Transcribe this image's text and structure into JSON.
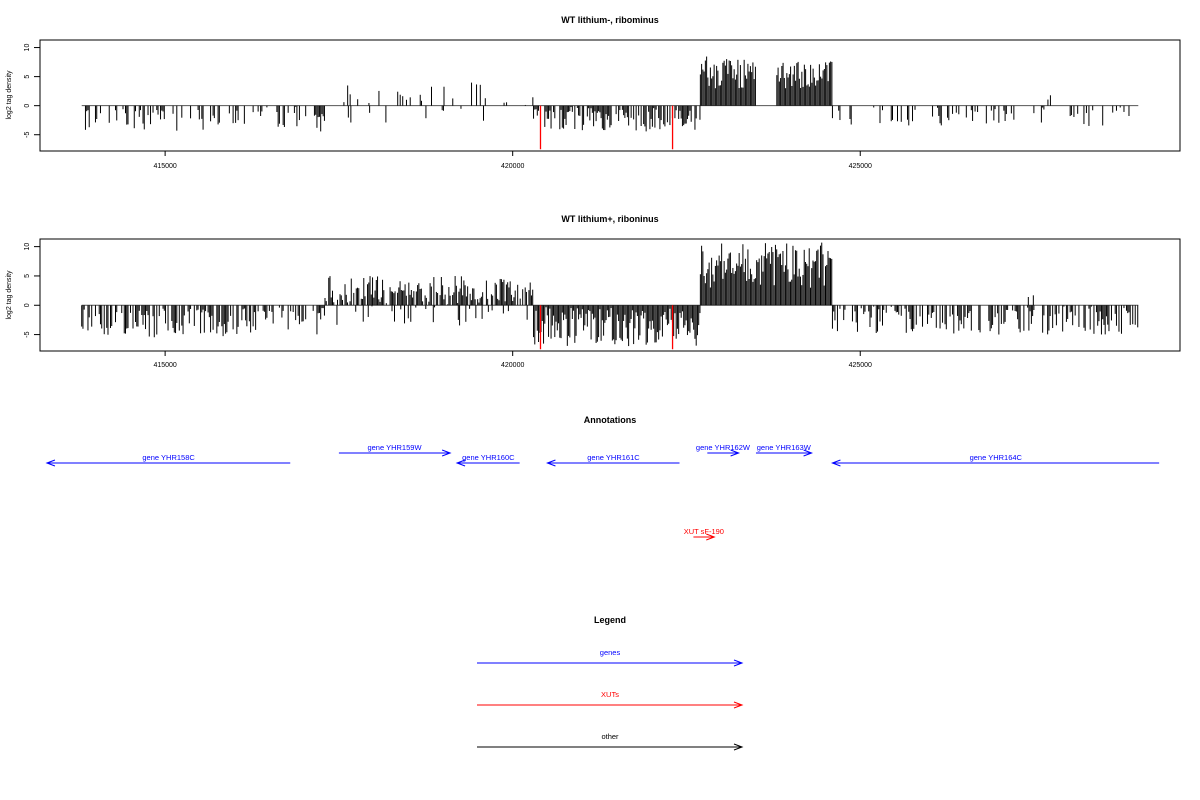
{
  "chart_data": [
    {
      "type": "bar",
      "title": "WT lithium-, ribominus",
      "ylabel": "log2 tag density",
      "x_ticks": [
        "415000",
        "420000",
        "425000"
      ],
      "x_tick_values": [
        415000,
        420000,
        425000
      ],
      "y_ticks": [
        "-5",
        "0",
        "5",
        "10"
      ],
      "y_tick_values": [
        -5,
        0,
        5,
        10
      ],
      "xlim": [
        413200,
        429600
      ],
      "ylim": [
        -7.8,
        11.3
      ],
      "marker_color": "#ff0000",
      "bar_color": "#000000",
      "red_markers": [
        {
          "x": 420400,
          "y": -7.5
        },
        {
          "x": 422300,
          "y": -7.5
        }
      ],
      "segments": [
        {
          "start": 413800,
          "end": 417300,
          "min": -4.5,
          "max": 0,
          "density": 0.35,
          "seed": 11
        },
        {
          "start": 417500,
          "end": 420300,
          "min": 0,
          "max": 4,
          "density": 0.12,
          "seed": 12
        },
        {
          "start": 417600,
          "end": 420300,
          "min": -3.5,
          "max": 0,
          "density": 0.06,
          "seed": 13
        },
        {
          "start": 420300,
          "end": 422700,
          "min": -4.5,
          "max": 0,
          "density": 0.75,
          "seed": 14
        },
        {
          "start": 422700,
          "end": 423500,
          "min": 3,
          "max": 8.8,
          "density": 1.0,
          "seed": 15
        },
        {
          "start": 423800,
          "end": 424600,
          "min": 3,
          "max": 7.7,
          "density": 1.0,
          "seed": 16
        },
        {
          "start": 424600,
          "end": 429000,
          "min": -3.5,
          "max": 0,
          "density": 0.28,
          "seed": 17
        },
        {
          "start": 427700,
          "end": 427800,
          "min": 0,
          "max": 2.3,
          "density": 0.5,
          "seed": 18
        }
      ]
    },
    {
      "type": "bar",
      "title": "WT lithium+, riboninus",
      "ylabel": "log2 tag density",
      "x_ticks": [
        "415000",
        "420000",
        "425000"
      ],
      "x_tick_values": [
        415000,
        420000,
        425000
      ],
      "y_ticks": [
        "-5",
        "0",
        "5",
        "10"
      ],
      "y_tick_values": [
        -5,
        0,
        5,
        10
      ],
      "xlim": [
        413200,
        429600
      ],
      "ylim": [
        -7.8,
        11.3
      ],
      "marker_color": "#ff0000",
      "bar_color": "#000000",
      "red_markers": [
        {
          "x": 420400,
          "y": -7.5
        },
        {
          "x": 422300,
          "y": -7.5
        }
      ],
      "segments": [
        {
          "start": 413800,
          "end": 417300,
          "min": -5.5,
          "max": 0,
          "density": 0.6,
          "seed": 21
        },
        {
          "start": 417300,
          "end": 420300,
          "min": 0,
          "max": 5,
          "density": 0.75,
          "seed": 22
        },
        {
          "start": 417400,
          "end": 420300,
          "min": -3.5,
          "max": 0,
          "density": 0.1,
          "seed": 23
        },
        {
          "start": 420300,
          "end": 422700,
          "min": -7,
          "max": 0,
          "density": 1.0,
          "seed": 24
        },
        {
          "start": 422700,
          "end": 424600,
          "min": 3,
          "max": 10.8,
          "density": 1.0,
          "seed": 25
        },
        {
          "start": 424600,
          "end": 429000,
          "min": -5,
          "max": 0,
          "density": 0.6,
          "seed": 26
        },
        {
          "start": 427400,
          "end": 427500,
          "min": 0,
          "max": 1.8,
          "density": 0.5,
          "seed": 27
        }
      ]
    }
  ],
  "annotations": {
    "title": "Annotations",
    "features": [
      {
        "label": "gene YHR158C",
        "start": 413300,
        "end": 416800,
        "strand": "-",
        "row": 1,
        "color": "#0000ff"
      },
      {
        "label": "gene YHR159W",
        "start": 417500,
        "end": 419100,
        "strand": "+",
        "row": 0,
        "color": "#0000ff"
      },
      {
        "label": "gene YHR160C",
        "start": 419200,
        "end": 420100,
        "strand": "-",
        "row": 1,
        "color": "#0000ff"
      },
      {
        "label": "gene YHR161C",
        "start": 420500,
        "end": 422400,
        "strand": "-",
        "row": 1,
        "color": "#0000ff"
      },
      {
        "label": "gene YHR162W",
        "start": 422800,
        "end": 423250,
        "strand": "+",
        "row": 0,
        "color": "#0000ff"
      },
      {
        "label": "gene YHR163W",
        "start": 423500,
        "end": 424300,
        "strand": "+",
        "row": 0,
        "color": "#0000ff"
      },
      {
        "label": "gene YHR164C",
        "start": 424600,
        "end": 429300,
        "strand": "-",
        "row": 1,
        "color": "#0000ff"
      },
      {
        "label": "XUT sF-190",
        "start": 422600,
        "end": 422900,
        "strand": "+",
        "row": 2,
        "color": "#ff0000"
      }
    ]
  },
  "legend": {
    "title": "Legend",
    "items": [
      {
        "label": "genes",
        "color": "#0000ff"
      },
      {
        "label": "XUTs",
        "color": "#ff0000"
      },
      {
        "label": "other",
        "color": "#000000"
      }
    ]
  }
}
